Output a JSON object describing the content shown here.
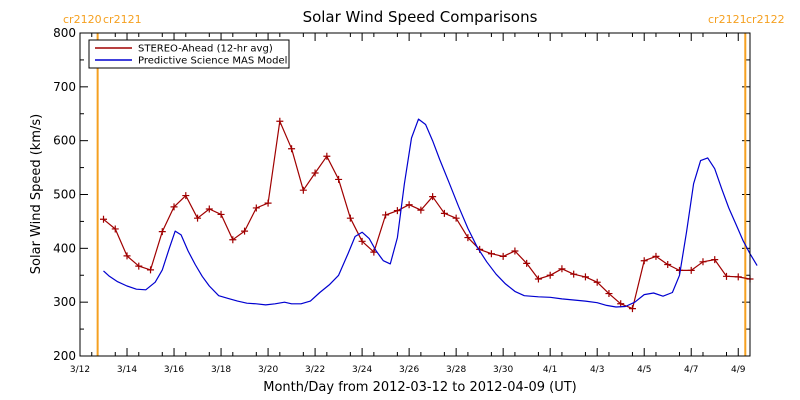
{
  "chart_data": {
    "type": "line",
    "title": "Solar Wind Speed Comparisons",
    "xlabel": "Month/Day from 2012-03-12 to 2012-04-09 (UT)",
    "ylabel": "Solar Wind Speed (km/s)",
    "xlim": [
      0,
      28.5
    ],
    "ylim": [
      200,
      800
    ],
    "y_ticks": [
      200,
      300,
      400,
      500,
      600,
      700,
      800
    ],
    "x_ticks": [
      {
        "x": 0,
        "label": "3/12"
      },
      {
        "x": 2,
        "label": "3/14"
      },
      {
        "x": 4,
        "label": "3/16"
      },
      {
        "x": 6,
        "label": "3/18"
      },
      {
        "x": 8,
        "label": "3/20"
      },
      {
        "x": 10,
        "label": "3/22"
      },
      {
        "x": 12,
        "label": "3/24"
      },
      {
        "x": 14,
        "label": "3/26"
      },
      {
        "x": 16,
        "label": "3/28"
      },
      {
        "x": 18,
        "label": "3/30"
      },
      {
        "x": 20,
        "label": "4/1"
      },
      {
        "x": 22,
        "label": "4/3"
      },
      {
        "x": 24,
        "label": "4/5"
      },
      {
        "x": 26,
        "label": "4/7"
      },
      {
        "x": 28,
        "label": "4/9"
      }
    ],
    "carrington_markers": [
      {
        "x": 0.75,
        "left_label": "cr2120",
        "right_label": "cr2121",
        "color": "#f5a020"
      },
      {
        "x": 28.3,
        "left_label": "cr2121",
        "right_label": "cr2122",
        "color": "#f5a020"
      }
    ],
    "legend_position": "top-left",
    "series": [
      {
        "name": "STEREO-Ahead (12-hr avg)",
        "color": "#a00000",
        "marker": "plus",
        "points": [
          [
            1.0,
            454
          ],
          [
            1.5,
            436
          ],
          [
            2.0,
            386
          ],
          [
            2.5,
            367
          ],
          [
            3.0,
            360
          ],
          [
            3.5,
            431
          ],
          [
            4.0,
            477
          ],
          [
            4.5,
            498
          ],
          [
            5.0,
            456
          ],
          [
            5.5,
            473
          ],
          [
            6.0,
            463
          ],
          [
            6.5,
            416
          ],
          [
            7.0,
            432
          ],
          [
            7.5,
            475
          ],
          [
            8.0,
            484
          ],
          [
            8.5,
            636
          ],
          [
            9.0,
            585
          ],
          [
            9.5,
            508
          ],
          [
            10.0,
            540
          ],
          [
            10.5,
            571
          ],
          [
            11.0,
            528
          ],
          [
            11.5,
            456
          ],
          [
            12.0,
            413
          ],
          [
            12.5,
            393
          ],
          [
            13.0,
            462
          ],
          [
            13.5,
            470
          ],
          [
            14.0,
            481
          ],
          [
            14.5,
            471
          ],
          [
            15.0,
            496
          ],
          [
            15.5,
            465
          ],
          [
            16.0,
            456
          ],
          [
            16.5,
            420
          ],
          [
            17.0,
            398
          ],
          [
            17.5,
            390
          ],
          [
            18.0,
            385
          ],
          [
            18.5,
            395
          ],
          [
            19.0,
            372
          ],
          [
            19.5,
            343
          ],
          [
            20.0,
            350
          ],
          [
            20.5,
            362
          ],
          [
            21.0,
            352
          ],
          [
            21.5,
            347
          ],
          [
            22.0,
            337
          ],
          [
            22.5,
            316
          ],
          [
            23.0,
            297
          ],
          [
            23.5,
            288
          ],
          [
            24.0,
            377
          ],
          [
            24.5,
            385
          ],
          [
            25.0,
            370
          ],
          [
            25.5,
            359
          ],
          [
            26.0,
            359
          ],
          [
            26.5,
            375
          ],
          [
            27.0,
            379
          ],
          [
            27.5,
            348
          ],
          [
            28.0,
            347
          ],
          [
            28.5,
            343
          ]
        ]
      },
      {
        "name": "Predictive Science MAS Model",
        "color": "#0000d0",
        "marker": "none",
        "points": [
          [
            1.0,
            358
          ],
          [
            1.25,
            348
          ],
          [
            1.6,
            338
          ],
          [
            2.0,
            330
          ],
          [
            2.4,
            324
          ],
          [
            2.8,
            323
          ],
          [
            3.2,
            337
          ],
          [
            3.5,
            360
          ],
          [
            3.8,
            400
          ],
          [
            4.05,
            432
          ],
          [
            4.3,
            425
          ],
          [
            4.6,
            395
          ],
          [
            4.9,
            370
          ],
          [
            5.2,
            348
          ],
          [
            5.5,
            330
          ],
          [
            5.9,
            312
          ],
          [
            6.3,
            307
          ],
          [
            6.7,
            302
          ],
          [
            7.1,
            298
          ],
          [
            7.5,
            297
          ],
          [
            7.9,
            295
          ],
          [
            8.3,
            297
          ],
          [
            8.7,
            300
          ],
          [
            9.0,
            297
          ],
          [
            9.4,
            297
          ],
          [
            9.8,
            302
          ],
          [
            10.2,
            318
          ],
          [
            10.6,
            332
          ],
          [
            11.0,
            350
          ],
          [
            11.4,
            390
          ],
          [
            11.7,
            422
          ],
          [
            12.0,
            430
          ],
          [
            12.3,
            418
          ],
          [
            12.6,
            395
          ],
          [
            12.9,
            377
          ],
          [
            13.2,
            371
          ],
          [
            13.5,
            420
          ],
          [
            13.8,
            520
          ],
          [
            14.1,
            605
          ],
          [
            14.4,
            640
          ],
          [
            14.7,
            630
          ],
          [
            15.0,
            600
          ],
          [
            15.3,
            565
          ],
          [
            15.7,
            522
          ],
          [
            16.1,
            478
          ],
          [
            16.5,
            437
          ],
          [
            16.9,
            402
          ],
          [
            17.3,
            375
          ],
          [
            17.7,
            352
          ],
          [
            18.1,
            334
          ],
          [
            18.5,
            320
          ],
          [
            18.9,
            312
          ],
          [
            19.5,
            310
          ],
          [
            20.0,
            309
          ],
          [
            20.5,
            306
          ],
          [
            21.0,
            304
          ],
          [
            21.5,
            302
          ],
          [
            22.0,
            299
          ],
          [
            22.4,
            294
          ],
          [
            22.8,
            291
          ],
          [
            23.2,
            292
          ],
          [
            23.6,
            300
          ],
          [
            24.0,
            314
          ],
          [
            24.4,
            317
          ],
          [
            24.8,
            311
          ],
          [
            25.2,
            318
          ],
          [
            25.5,
            350
          ],
          [
            25.8,
            430
          ],
          [
            26.1,
            520
          ],
          [
            26.4,
            563
          ],
          [
            26.7,
            568
          ],
          [
            27.0,
            548
          ],
          [
            27.3,
            510
          ],
          [
            27.6,
            475
          ],
          [
            27.9,
            445
          ],
          [
            28.2,
            415
          ],
          [
            28.5,
            390
          ],
          [
            28.8,
            368
          ]
        ]
      }
    ]
  }
}
